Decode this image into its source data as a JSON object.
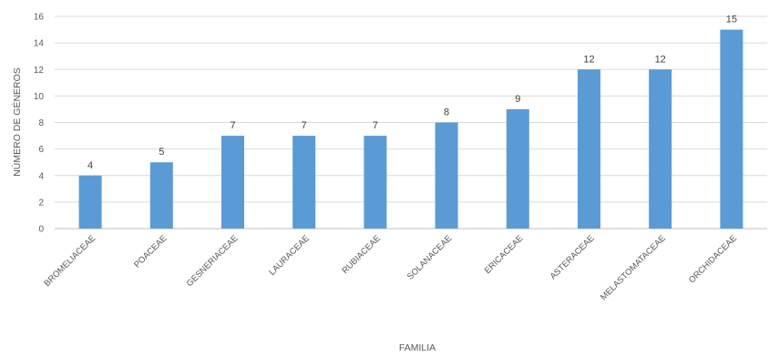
{
  "chart_data": {
    "type": "bar",
    "title": "",
    "xlabel": "FAMILIA",
    "ylabel": "NÚMERO DE GÉNEROS",
    "ylim": [
      0,
      16
    ],
    "yticks": [
      0,
      2,
      4,
      6,
      8,
      10,
      12,
      14,
      16
    ],
    "grid": "horizontal",
    "legend": "none",
    "bar_color": "#5B9BD5",
    "categories": [
      "BROMELIACEAE",
      "POACEAE",
      "GESNERIACEAE",
      "LAURACEAE",
      "RUBIACEAE",
      "SOLANACEAE",
      "ERICACEAE",
      "ASTERACEAE",
      "MELASTOMATACEAE",
      "ORCHIDACEAE"
    ],
    "values": [
      4,
      5,
      7,
      7,
      7,
      8,
      9,
      12,
      12,
      15
    ]
  }
}
